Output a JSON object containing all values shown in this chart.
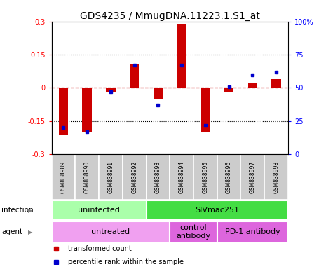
{
  "title": "GDS4235 / MmugDNA.11223.1.S1_at",
  "samples": [
    "GSM838989",
    "GSM838990",
    "GSM838991",
    "GSM838992",
    "GSM838993",
    "GSM838994",
    "GSM838995",
    "GSM838996",
    "GSM838997",
    "GSM838998"
  ],
  "transformed_count": [
    -0.21,
    -0.2,
    -0.02,
    0.11,
    -0.05,
    0.29,
    -0.2,
    -0.02,
    0.02,
    0.04
  ],
  "percentile_rank": [
    20,
    17,
    47,
    67,
    37,
    67,
    22,
    51,
    60,
    62
  ],
  "ylim_left": [
    -0.3,
    0.3
  ],
  "ylim_right": [
    0,
    100
  ],
  "yticks_left": [
    -0.3,
    -0.15,
    0,
    0.15,
    0.3
  ],
  "yticks_right": [
    0,
    25,
    50,
    75,
    100
  ],
  "dotted_lines": [
    -0.15,
    0.15
  ],
  "bar_color": "#cc0000",
  "dot_color": "#0000cc",
  "zero_line_color": "#cc0000",
  "infection_groups": [
    {
      "label": "uninfected",
      "start": 0,
      "end": 4,
      "color": "#aaeea a"
    },
    {
      "label": "SIVmac251",
      "start": 4,
      "end": 10,
      "color": "#44dd44"
    }
  ],
  "agent_groups": [
    {
      "label": "untreated",
      "start": 0,
      "end": 5,
      "color": "#f0a0f0"
    },
    {
      "label": "control\nantibody",
      "start": 5,
      "end": 7,
      "color": "#dd66dd"
    },
    {
      "label": "PD-1 antibody",
      "start": 7,
      "end": 10,
      "color": "#dd66dd"
    }
  ],
  "legend_items": [
    {
      "label": "transformed count",
      "color": "#cc0000"
    },
    {
      "label": "percentile rank within the sample",
      "color": "#0000cc"
    }
  ],
  "infection_label": "infection",
  "agent_label": "agent",
  "title_fontsize": 10,
  "tick_fontsize": 7,
  "label_fontsize": 8,
  "sample_fontsize": 5.5
}
